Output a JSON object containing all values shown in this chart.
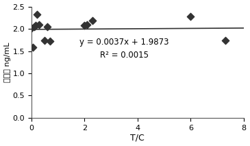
{
  "scatter_x": [
    0.0,
    0.05,
    0.1,
    0.15,
    0.2,
    0.3,
    0.5,
    0.6,
    0.7,
    2.0,
    2.1,
    2.3,
    6.0,
    7.3
  ],
  "scatter_y": [
    2.02,
    1.58,
    2.05,
    2.08,
    2.32,
    2.1,
    1.74,
    2.05,
    1.73,
    2.07,
    2.1,
    2.18,
    2.27,
    1.74
  ],
  "slope": 0.0037,
  "intercept": 1.9873,
  "r2": 0.0015,
  "equation_text": "y = 0.0037x + 1.9873",
  "r2_text": "R² = 0.0015",
  "xlabel": "T/C",
  "ylabel": "标水値 ng/mL",
  "xlim": [
    0,
    8
  ],
  "ylim": [
    0,
    2.5
  ],
  "xticks": [
    0,
    2,
    4,
    6,
    8
  ],
  "yticks": [
    0,
    0.5,
    1.0,
    1.5,
    2.0,
    2.5
  ],
  "eq_x": 3.5,
  "eq_y": 1.55,
  "marker_color": "#333333",
  "line_color": "#333333",
  "bg_color": "#f0f0f0"
}
